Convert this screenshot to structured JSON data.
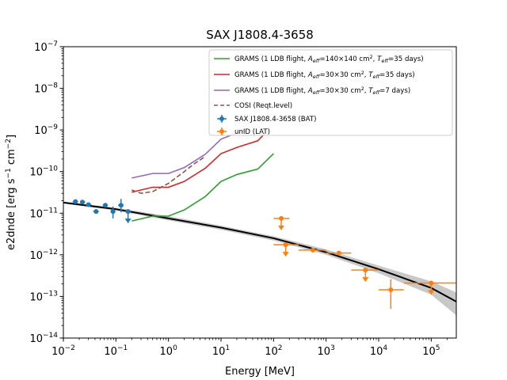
{
  "chart_data": {
    "type": "line",
    "title": "SAX J1808.4-3658",
    "xlabel": "Energy [MeV]",
    "ylabel_main": "e2dnde [erg s",
    "ylabel_exp1": "−1",
    "ylabel_mid": " cm",
    "ylabel_exp2": "−2",
    "ylabel_end": "]",
    "xscale": "log",
    "yscale": "log",
    "xlim": [
      0.01,
      300000
    ],
    "ylim": [
      1e-14,
      1e-07
    ],
    "x_ticks": [
      {
        "value": 0.01,
        "base": "10",
        "exp": "−2"
      },
      {
        "value": 0.1,
        "base": "10",
        "exp": "−1"
      },
      {
        "value": 1,
        "base": "10",
        "exp": "0"
      },
      {
        "value": 10,
        "base": "10",
        "exp": "1"
      },
      {
        "value": 100,
        "base": "10",
        "exp": "2"
      },
      {
        "value": 1000,
        "base": "10",
        "exp": "3"
      },
      {
        "value": 10000,
        "base": "10",
        "exp": "4"
      },
      {
        "value": 100000,
        "base": "10",
        "exp": "5"
      }
    ],
    "y_ticks": [
      {
        "value": 1e-14,
        "base": "10",
        "exp": "−14"
      },
      {
        "value": 1e-13,
        "base": "10",
        "exp": "−13"
      },
      {
        "value": 1e-12,
        "base": "10",
        "exp": "−12"
      },
      {
        "value": 1e-11,
        "base": "10",
        "exp": "−11"
      },
      {
        "value": 1e-10,
        "base": "10",
        "exp": "−10"
      },
      {
        "value": 1e-09,
        "base": "10",
        "exp": "−9"
      },
      {
        "value": 1e-08,
        "base": "10",
        "exp": "−8"
      },
      {
        "value": 1e-07,
        "base": "10",
        "exp": "−7"
      }
    ],
    "legend_position": "top-right",
    "model": {
      "color": "#000000",
      "x": [
        0.01,
        0.1,
        1,
        10,
        100,
        1000,
        10000,
        100000,
        300000
      ],
      "y": [
        1.8e-11,
        1.25e-11,
        7.5e-12,
        4.5e-12,
        2.5e-12,
        1.15e-12,
        4.5e-13,
        1.6e-13,
        7.5e-14
      ],
      "band_upper": [
        1.9e-11,
        1.35e-11,
        8.5e-12,
        5e-12,
        2.8e-12,
        1.35e-12,
        5.5e-13,
        2.3e-13,
        1.25e-13
      ],
      "band_lower": [
        1.7e-11,
        1.15e-11,
        6.7e-12,
        4e-12,
        2.2e-12,
        1e-12,
        3.6e-13,
        1.1e-13,
        3.5e-14
      ],
      "band_color": "#c8c8c8"
    },
    "series": [
      {
        "name_prefix": "GRAMS (1 LDB flight, ",
        "name_aeff": "140×140 cm",
        "name_teff": "35 days",
        "color": "#2ca02c",
        "x": [
          0.2,
          0.5,
          1,
          2,
          5,
          10,
          20,
          50,
          100
        ],
        "y": [
          6.5e-12,
          8.5e-12,
          8.5e-12,
          1.2e-11,
          2.5e-11,
          5.8e-11,
          8.5e-11,
          1.15e-10,
          2.7e-10
        ]
      },
      {
        "name_prefix": "GRAMS (1 LDB flight, ",
        "name_aeff": "30×30 cm",
        "name_teff": "35 days",
        "color": "#d62728",
        "x": [
          0.2,
          0.5,
          1,
          2,
          5,
          10,
          20,
          50,
          70
        ],
        "y": [
          3.2e-11,
          4.2e-11,
          4.2e-11,
          5.8e-11,
          1.2e-10,
          2.7e-10,
          3.8e-10,
          5.5e-10,
          8.5e-10
        ]
      },
      {
        "name_prefix": "GRAMS (1 LDB flight, ",
        "name_aeff": "30×30 cm",
        "name_teff": "7 days",
        "color": "#9467bd",
        "x": [
          0.2,
          0.5,
          1,
          2,
          5,
          10,
          20,
          30
        ],
        "y": [
          7e-11,
          9e-11,
          9e-11,
          1.25e-10,
          2.6e-10,
          6e-10,
          8.5e-10,
          1e-09
        ]
      }
    ],
    "cosi": {
      "name": "COSI (Reqt.level)",
      "color": "#8c564b",
      "x": [
        0.2,
        0.3,
        0.5,
        1,
        2,
        3,
        5
      ],
      "y": [
        3.6e-11,
        3e-11,
        3.3e-11,
        5.2e-11,
        1e-10,
        1.5e-10,
        2.3e-10
      ]
    },
    "bat": {
      "name": "SAX J1808.4-3658 (BAT)",
      "color": "#1f77b4",
      "points": [
        {
          "x": 0.017,
          "y": 1.9e-11,
          "xerr": [
            0.015,
            0.019
          ],
          "yerr": [
            1.75e-11,
            2.05e-11
          ],
          "ul": false
        },
        {
          "x": 0.023,
          "y": 1.85e-11,
          "xerr": [
            0.021,
            0.026
          ],
          "yerr": [
            1.7e-11,
            2e-11
          ],
          "ul": false
        },
        {
          "x": 0.03,
          "y": 1.6e-11,
          "xerr": [
            0.027,
            0.034
          ],
          "yerr": [
            1.45e-11,
            1.75e-11
          ],
          "ul": false
        },
        {
          "x": 0.042,
          "y": 1.1e-11,
          "xerr": [
            0.037,
            0.047
          ],
          "yerr": [
            1e-11,
            1.2e-11
          ],
          "ul": false
        },
        {
          "x": 0.063,
          "y": 1.55e-11,
          "xerr": [
            0.056,
            0.07
          ],
          "yerr": [
            1.4e-11,
            1.7e-11
          ],
          "ul": false
        },
        {
          "x": 0.088,
          "y": 1.1e-11,
          "xerr": [
            0.079,
            0.098
          ],
          "yerr": [
            7.5e-12,
            1.45e-11
          ],
          "ul": false
        },
        {
          "x": 0.125,
          "y": 1.55e-11,
          "xerr": [
            0.11,
            0.14
          ],
          "yerr": [
            1.05e-11,
            2.2e-11
          ],
          "ul": false
        },
        {
          "x": 0.17,
          "y": 1.1e-11,
          "xerr": [
            0.15,
            0.19
          ],
          "yerr": [
            1.1e-11,
            1.1e-11
          ],
          "ul": true
        }
      ]
    },
    "lat": {
      "name": "unID (LAT)",
      "color": "#ff7f0e",
      "points": [
        {
          "x": 140,
          "y": 7.5e-12,
          "xerr": [
            100,
            200
          ],
          "yerr": [
            7.5e-12,
            7.5e-12
          ],
          "ul": true
        },
        {
          "x": 170,
          "y": 1.75e-12,
          "xerr": [
            100,
            300
          ],
          "yerr": [
            1.75e-12,
            1.75e-12
          ],
          "ul": true
        },
        {
          "x": 560,
          "y": 1.3e-12,
          "xerr": [
            300,
            1000
          ],
          "yerr": [
            1.15e-12,
            1.45e-12
          ],
          "ul": false
        },
        {
          "x": 1750,
          "y": 1.1e-12,
          "xerr": [
            1000,
            3000
          ],
          "yerr": [
            1e-12,
            1.2e-12
          ],
          "ul": false
        },
        {
          "x": 5600,
          "y": 4.3e-13,
          "xerr": [
            3000,
            10000
          ],
          "yerr": [
            4.3e-13,
            4.3e-13
          ],
          "ul": true
        },
        {
          "x": 17000,
          "y": 1.45e-13,
          "xerr": [
            10000,
            30000
          ],
          "yerr": [
            5e-14,
            2.6e-13
          ],
          "ul": false
        },
        {
          "x": 100000,
          "y": 2.1e-13,
          "xerr": [
            30000,
            300000
          ],
          "yerr": [
            2.1e-13,
            2.1e-13
          ],
          "ul": true
        }
      ]
    }
  }
}
